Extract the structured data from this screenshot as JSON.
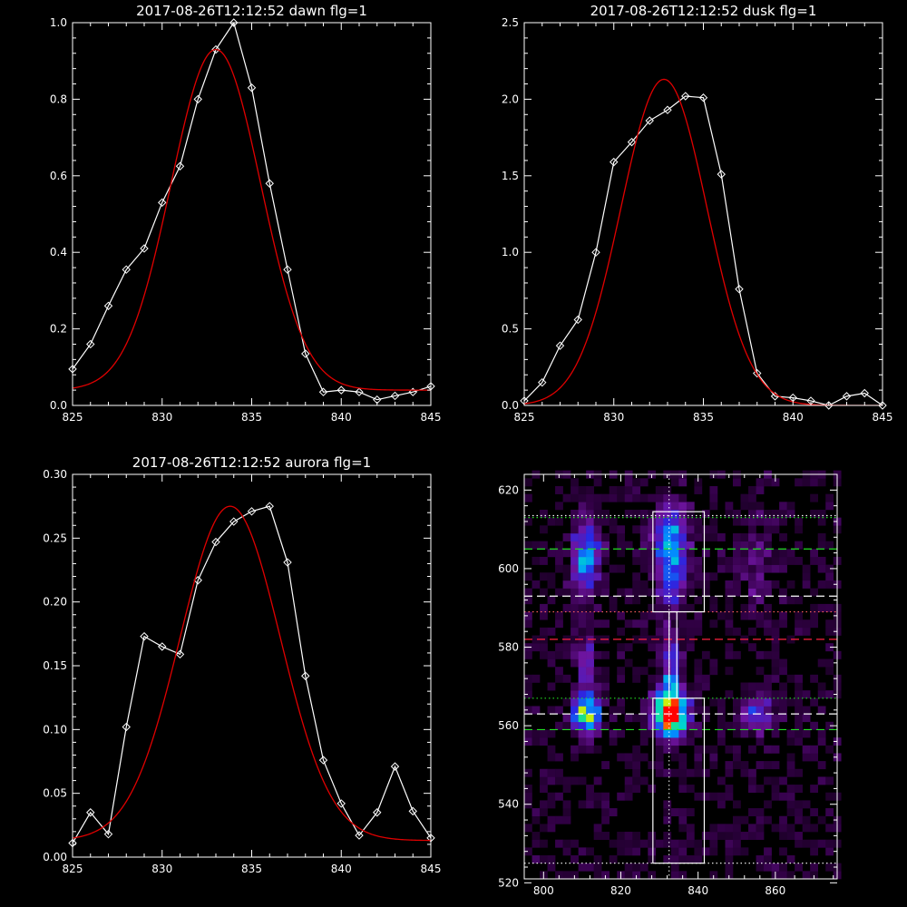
{
  "chart_data": [
    {
      "type": "line",
      "title": "2017-08-26T12:12:52 dawn flg=1",
      "xlim": [
        825,
        845
      ],
      "ylim": [
        0,
        1.0
      ],
      "xticks": [
        "825",
        "830",
        "835",
        "840",
        "845"
      ],
      "yticks": [
        "0.0",
        "0.2",
        "0.4",
        "0.6",
        "0.8",
        "1.0"
      ],
      "series": [
        {
          "color": "#ffffff",
          "marker": "diamond",
          "x": [
            825,
            826,
            827,
            828,
            829,
            830,
            831,
            832,
            833,
            834,
            835,
            836,
            837,
            838,
            839,
            840,
            841,
            842,
            843,
            844,
            845
          ],
          "y": [
            0.095,
            0.16,
            0.26,
            0.355,
            0.41,
            0.53,
            0.625,
            0.8,
            0.93,
            1.0,
            0.83,
            0.58,
            0.355,
            0.135,
            0.035,
            0.04,
            0.035,
            0.015,
            0.025,
            0.035,
            0.05
          ]
        },
        {
          "color": "#e00000",
          "fit": "gaussian",
          "amp": 0.89,
          "center": 833.0,
          "sigma": 2.5,
          "offset": 0.04
        }
      ]
    },
    {
      "type": "line",
      "title": "2017-08-26T12:12:52 dusk flg=1",
      "xlim": [
        825,
        845
      ],
      "ylim": [
        0,
        2.5
      ],
      "xticks": [
        "825",
        "830",
        "835",
        "840",
        "845"
      ],
      "yticks": [
        "0.0",
        "0.5",
        "1.0",
        "1.5",
        "2.0",
        "2.5"
      ],
      "series": [
        {
          "color": "#ffffff",
          "marker": "diamond",
          "x": [
            825,
            826,
            827,
            828,
            829,
            830,
            831,
            832,
            833,
            834,
            835,
            836,
            837,
            838,
            839,
            840,
            841,
            842,
            843,
            844,
            845
          ],
          "y": [
            0.03,
            0.15,
            0.39,
            0.56,
            1.0,
            1.59,
            1.72,
            1.86,
            1.93,
            2.02,
            2.01,
            1.51,
            0.76,
            0.21,
            0.06,
            0.05,
            0.03,
            0.0,
            0.06,
            0.08,
            0.0
          ]
        },
        {
          "color": "#e00000",
          "fit": "gaussian",
          "amp": 2.13,
          "center": 832.8,
          "sigma": 2.4,
          "offset": 0.0
        }
      ]
    },
    {
      "type": "line",
      "title": "2017-08-26T12:12:52 aurora flg=1",
      "xlim": [
        825,
        845
      ],
      "ylim": [
        0,
        0.3
      ],
      "xticks": [
        "825",
        "830",
        "835",
        "840",
        "845"
      ],
      "yticks": [
        "0.00",
        "0.05",
        "0.10",
        "0.15",
        "0.20",
        "0.25",
        "0.30"
      ],
      "series": [
        {
          "color": "#ffffff",
          "marker": "diamond",
          "x": [
            825,
            826,
            827,
            828,
            829,
            830,
            831,
            832,
            833,
            834,
            835,
            836,
            837,
            838,
            839,
            840,
            841,
            842,
            843,
            844,
            845
          ],
          "y": [
            0.011,
            0.035,
            0.018,
            0.102,
            0.173,
            0.165,
            0.159,
            0.217,
            0.247,
            0.263,
            0.271,
            0.275,
            0.231,
            0.142,
            0.076,
            0.042,
            0.017,
            0.035,
            0.071,
            0.036,
            0.015
          ]
        },
        {
          "color": "#e00000",
          "fit": "gaussian",
          "amp": 0.262,
          "center": 833.8,
          "sigma": 2.8,
          "offset": 0.013
        }
      ]
    },
    {
      "type": "heatmap",
      "title": "",
      "xlim": [
        795,
        876
      ],
      "ylim": [
        521,
        624
      ],
      "xticks": [
        "800",
        "820",
        "840",
        "860"
      ],
      "yticks": [
        "520",
        "540",
        "560",
        "580",
        "600",
        "620"
      ],
      "blobs": [
        {
          "x": 811,
          "y": 603,
          "sx": 2.4,
          "sy": 7.0,
          "peak": 0.42
        },
        {
          "x": 833,
          "y": 604,
          "sx": 3.0,
          "sy": 8.0,
          "peak": 0.5
        },
        {
          "x": 811,
          "y": 563,
          "sx": 2.4,
          "sy": 3.5,
          "peak": 0.62
        },
        {
          "x": 833,
          "y": 563,
          "sx": 2.8,
          "sy": 4.0,
          "peak": 0.95
        },
        {
          "x": 833,
          "y": 572,
          "sx": 1.5,
          "sy": 7.0,
          "peak": 0.35
        },
        {
          "x": 811,
          "y": 575,
          "sx": 1.8,
          "sy": 6.0,
          "peak": 0.22
        },
        {
          "x": 855,
          "y": 563,
          "sx": 3.0,
          "sy": 3.0,
          "peak": 0.3
        },
        {
          "x": 855,
          "y": 600,
          "sx": 3.0,
          "sy": 10.0,
          "peak": 0.12
        }
      ],
      "hlines": [
        {
          "y": 613.5,
          "color": "#ffffff",
          "style": "dotted"
        },
        {
          "y": 613.0,
          "color": "#22dd22",
          "style": "dotted"
        },
        {
          "y": 605.0,
          "color": "#22dd22",
          "style": "dashed"
        },
        {
          "y": 593.0,
          "color": "#ffffff",
          "style": "dashed"
        },
        {
          "y": 589.0,
          "color": "#ff6060",
          "style": "dotted"
        },
        {
          "y": 582.0,
          "color": "#ff2040",
          "style": "dashed"
        },
        {
          "y": 567.0,
          "color": "#22dd22",
          "style": "dotted"
        },
        {
          "y": 563.0,
          "color": "#ffffff",
          "style": "dashed"
        },
        {
          "y": 559.0,
          "color": "#22dd22",
          "style": "dashed"
        },
        {
          "y": 525.0,
          "color": "#ffffff",
          "style": "dotted"
        }
      ],
      "vlines": [
        {
          "x": 832.5,
          "color": "#ffffff",
          "style": "dotted"
        }
      ],
      "boxes": [
        {
          "x0": 828.3,
          "x1": 841.6,
          "y0": 589.0,
          "y1": 614.5
        },
        {
          "x0": 828.3,
          "x1": 841.6,
          "y0": 525.0,
          "y1": 567.0
        },
        {
          "x0": 832.5,
          "x1": 834.5,
          "y0": 567.0,
          "y1": 589.0
        }
      ]
    }
  ]
}
